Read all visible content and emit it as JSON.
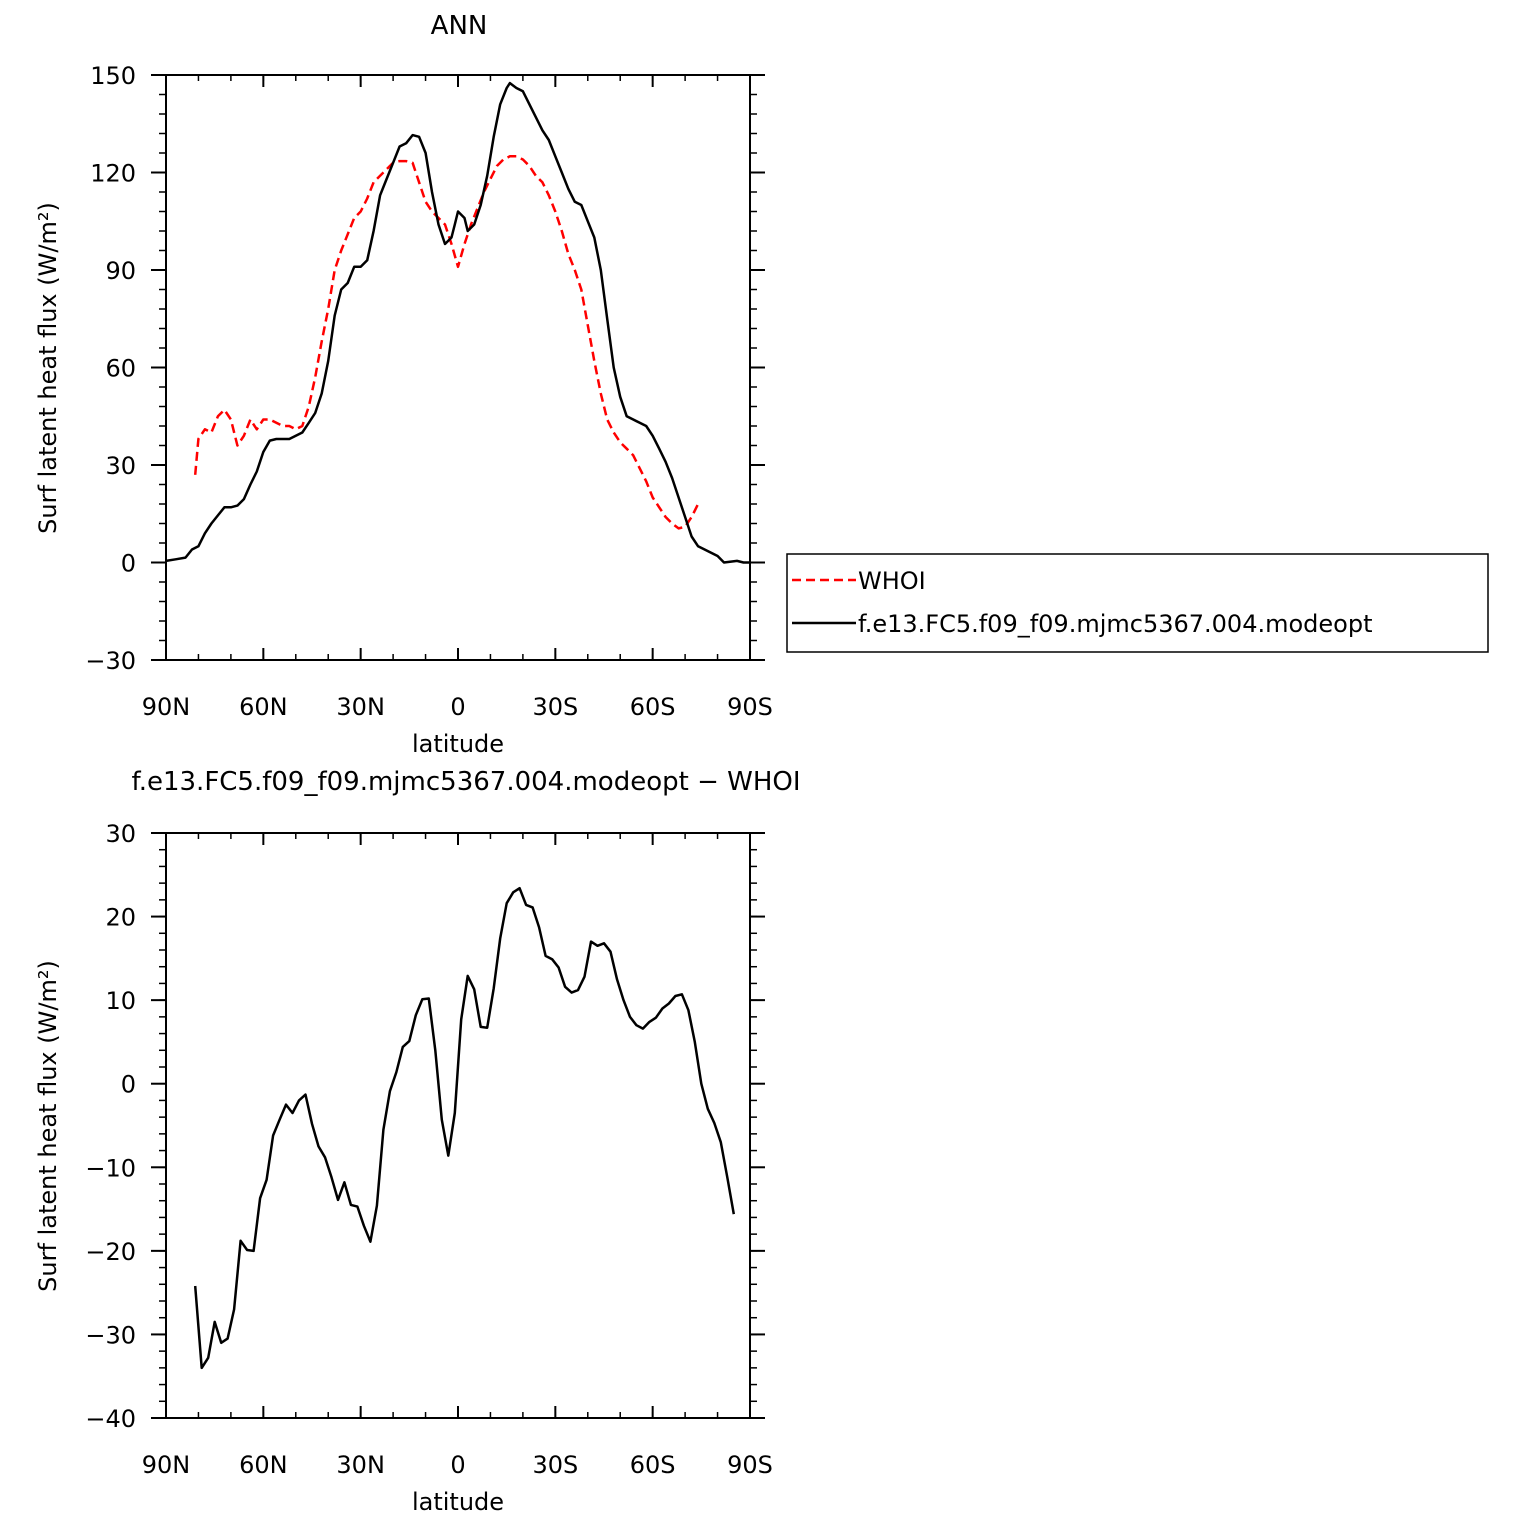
{
  "chart_data": [
    {
      "type": "line",
      "title": "ANN",
      "xlabel": "latitude",
      "ylabel": "Surf latent heat flux (W/m²)",
      "xlim": [
        90,
        -90
      ],
      "ylim": [
        -30,
        150
      ],
      "x_ticks": [
        {
          "value": 90,
          "label": "90N"
        },
        {
          "value": 60,
          "label": "60N"
        },
        {
          "value": 30,
          "label": "30N"
        },
        {
          "value": 0,
          "label": "0"
        },
        {
          "value": -30,
          "label": "30S"
        },
        {
          "value": -60,
          "label": "60S"
        },
        {
          "value": -90,
          "label": "90S"
        }
      ],
      "y_ticks": [
        {
          "value": 150,
          "label": "150"
        },
        {
          "value": 120,
          "label": "120"
        },
        {
          "value": 90,
          "label": "90"
        },
        {
          "value": 60,
          "label": "60"
        },
        {
          "value": 30,
          "label": "30"
        },
        {
          "value": 0,
          "label": "0"
        },
        {
          "value": -30,
          "label": "−30"
        }
      ],
      "legend": "right",
      "series": [
        {
          "name": "WHOI",
          "color": "#ff0000",
          "dash": true,
          "points": [
            [
              81,
              27
            ],
            [
              80,
              38
            ],
            [
              78,
              41
            ],
            [
              76,
              40
            ],
            [
              74,
              45
            ],
            [
              72,
              47
            ],
            [
              70,
              44
            ],
            [
              68,
              36
            ],
            [
              66,
              39
            ],
            [
              64,
              44
            ],
            [
              62,
              41
            ],
            [
              60,
              44
            ],
            [
              58,
              44
            ],
            [
              56,
              43
            ],
            [
              54,
              42
            ],
            [
              52,
              42
            ],
            [
              50,
              41
            ],
            [
              48,
              42
            ],
            [
              46,
              48
            ],
            [
              44,
              57
            ],
            [
              42,
              68
            ],
            [
              40,
              78
            ],
            [
              38,
              90
            ],
            [
              36,
              96
            ],
            [
              34,
              101
            ],
            [
              32,
              106
            ],
            [
              30,
              108
            ],
            [
              28,
              112
            ],
            [
              26,
              117
            ],
            [
              24,
              119
            ],
            [
              22,
              121
            ],
            [
              20,
              123
            ],
            [
              18,
              123.5
            ],
            [
              16,
              123.5
            ],
            [
              14,
              123
            ],
            [
              12,
              117
            ],
            [
              10,
              111
            ],
            [
              8,
              108
            ],
            [
              6,
              106
            ],
            [
              4,
              104
            ],
            [
              2,
              98
            ],
            [
              0,
              91
            ],
            [
              -2,
              98
            ],
            [
              -4,
              104
            ],
            [
              -6,
              109
            ],
            [
              -8,
              114
            ],
            [
              -10,
              118
            ],
            [
              -12,
              122
            ],
            [
              -14,
              124
            ],
            [
              -16,
              125
            ],
            [
              -18,
              125
            ],
            [
              -20,
              124
            ],
            [
              -22,
              122
            ],
            [
              -24,
              119
            ],
            [
              -26,
              117
            ],
            [
              -28,
              113
            ],
            [
              -30,
              108
            ],
            [
              -32,
              102
            ],
            [
              -34,
              95
            ],
            [
              -36,
              90
            ],
            [
              -38,
              84
            ],
            [
              -40,
              73
            ],
            [
              -42,
              62
            ],
            [
              -44,
              52
            ],
            [
              -46,
              44
            ],
            [
              -48,
              40
            ],
            [
              -50,
              37
            ],
            [
              -52,
              35
            ],
            [
              -54,
              33
            ],
            [
              -56,
              29
            ],
            [
              -58,
              25
            ],
            [
              -60,
              20
            ],
            [
              -62,
              17
            ],
            [
              -64,
              14
            ],
            [
              -66,
              12
            ],
            [
              -68,
              10.5
            ],
            [
              -70,
              11
            ],
            [
              -72,
              14
            ],
            [
              -74,
              18
            ]
          ]
        },
        {
          "name": "f.e13.FC5.f09_f09.mjmc5367.004.modeopt",
          "color": "#000000",
          "dash": false,
          "points": [
            [
              90,
              0.5
            ],
            [
              87,
              1
            ],
            [
              84,
              1.5
            ],
            [
              82,
              4
            ],
            [
              80,
              5
            ],
            [
              78,
              9
            ],
            [
              76,
              12
            ],
            [
              74,
              14.5
            ],
            [
              72,
              17
            ],
            [
              70,
              17
            ],
            [
              68,
              17.5
            ],
            [
              66,
              19.5
            ],
            [
              64,
              24
            ],
            [
              62,
              28
            ],
            [
              60,
              34
            ],
            [
              58,
              37.5
            ],
            [
              56,
              38
            ],
            [
              54,
              38
            ],
            [
              52,
              38
            ],
            [
              50,
              39
            ],
            [
              48,
              40
            ],
            [
              46,
              43
            ],
            [
              44,
              46
            ],
            [
              42,
              52
            ],
            [
              40,
              62
            ],
            [
              38,
              76
            ],
            [
              36,
              84
            ],
            [
              34,
              86
            ],
            [
              32,
              91
            ],
            [
              30,
              91
            ],
            [
              28,
              93
            ],
            [
              26,
              102
            ],
            [
              24,
              113
            ],
            [
              22,
              118
            ],
            [
              20,
              123
            ],
            [
              18,
              128
            ],
            [
              16,
              129
            ],
            [
              14,
              131.5
            ],
            [
              12,
              131
            ],
            [
              10,
              126
            ],
            [
              8,
              114
            ],
            [
              6,
              104
            ],
            [
              4,
              98
            ],
            [
              2,
              100
            ],
            [
              1,
              104
            ],
            [
              0,
              108
            ],
            [
              -2,
              106
            ],
            [
              -3,
              102
            ],
            [
              -5,
              104
            ],
            [
              -7,
              110
            ],
            [
              -9,
              119
            ],
            [
              -11,
              131
            ],
            [
              -13,
              141
            ],
            [
              -15,
              146
            ],
            [
              -16,
              147.5
            ],
            [
              -18,
              146
            ],
            [
              -20,
              145
            ],
            [
              -22,
              141
            ],
            [
              -24,
              137
            ],
            [
              -26,
              133
            ],
            [
              -28,
              130
            ],
            [
              -30,
              125
            ],
            [
              -32,
              120
            ],
            [
              -34,
              115
            ],
            [
              -36,
              111
            ],
            [
              -38,
              110
            ],
            [
              -40,
              105
            ],
            [
              -42,
              100
            ],
            [
              -44,
              90
            ],
            [
              -46,
              75
            ],
            [
              -48,
              60
            ],
            [
              -50,
              51
            ],
            [
              -52,
              45
            ],
            [
              -54,
              44
            ],
            [
              -56,
              43
            ],
            [
              -58,
              42
            ],
            [
              -60,
              39
            ],
            [
              -62,
              35
            ],
            [
              -64,
              31
            ],
            [
              -66,
              26
            ],
            [
              -68,
              20
            ],
            [
              -70,
              14
            ],
            [
              -72,
              8
            ],
            [
              -74,
              5
            ],
            [
              -76,
              4
            ],
            [
              -78,
              3
            ],
            [
              -80,
              2
            ],
            [
              -82,
              0
            ],
            [
              -86,
              0.5
            ],
            [
              -88,
              0
            ],
            [
              -90,
              0
            ]
          ]
        }
      ]
    },
    {
      "type": "line",
      "title": "f.e13.FC5.f09_f09.mjmc5367.004.modeopt − WHOI",
      "xlabel": "latitude",
      "ylabel": "Surf latent heat flux (W/m²)",
      "xlim": [
        90,
        -90
      ],
      "ylim": [
        -40,
        30
      ],
      "x_ticks": [
        {
          "value": 90,
          "label": "90N"
        },
        {
          "value": 60,
          "label": "60N"
        },
        {
          "value": 30,
          "label": "30N"
        },
        {
          "value": 0,
          "label": "0"
        },
        {
          "value": -30,
          "label": "30S"
        },
        {
          "value": -60,
          "label": "60S"
        },
        {
          "value": -90,
          "label": "90S"
        }
      ],
      "y_ticks": [
        {
          "value": 30,
          "label": "30"
        },
        {
          "value": 20,
          "label": "20"
        },
        {
          "value": 10,
          "label": "10"
        },
        {
          "value": 0,
          "label": "0"
        },
        {
          "value": -10,
          "label": "−10"
        },
        {
          "value": -20,
          "label": "−20"
        },
        {
          "value": -30,
          "label": "−30"
        },
        {
          "value": -40,
          "label": "−40"
        }
      ],
      "series": [
        {
          "color": "#000000",
          "dash": false,
          "points": [
            [
              81,
              -24.2
            ],
            [
              79,
              -34
            ],
            [
              77,
              -32.8
            ],
            [
              75,
              -28.5
            ],
            [
              73,
              -31
            ],
            [
              71,
              -30.5
            ],
            [
              69,
              -27
            ],
            [
              67,
              -18.8
            ],
            [
              65,
              -19.9
            ],
            [
              63,
              -20
            ],
            [
              61,
              -13.7
            ],
            [
              59,
              -11.5
            ],
            [
              57,
              -6.2
            ],
            [
              55,
              -4.3
            ],
            [
              53,
              -2.5
            ],
            [
              51,
              -3.5
            ],
            [
              49,
              -2
            ],
            [
              47,
              -1.3
            ],
            [
              45,
              -4.8
            ],
            [
              43,
              -7.5
            ],
            [
              41,
              -8.8
            ],
            [
              39,
              -11.2
            ],
            [
              37,
              -13.9
            ],
            [
              35,
              -11.8
            ],
            [
              33,
              -14.5
            ],
            [
              31,
              -14.7
            ],
            [
              29,
              -17
            ],
            [
              27,
              -18.9
            ],
            [
              25,
              -14.6
            ],
            [
              23,
              -5.5
            ],
            [
              21,
              -0.9
            ],
            [
              19,
              1.4
            ],
            [
              17,
              4.4
            ],
            [
              15,
              5.1
            ],
            [
              13,
              8.2
            ],
            [
              11,
              10.1
            ],
            [
              9,
              10.2
            ],
            [
              7,
              4
            ],
            [
              5,
              -4.3
            ],
            [
              3,
              -8.6
            ],
            [
              1,
              -3.5
            ],
            [
              -1,
              7.7
            ],
            [
              -3,
              12.9
            ],
            [
              -5,
              11.3
            ],
            [
              -7,
              6.8
            ],
            [
              -9,
              6.7
            ],
            [
              -11,
              11.4
            ],
            [
              -13,
              17.4
            ],
            [
              -15,
              21.6
            ],
            [
              -17,
              22.9
            ],
            [
              -19,
              23.4
            ],
            [
              -21,
              21.4
            ],
            [
              -23,
              21.1
            ],
            [
              -25,
              18.7
            ],
            [
              -27,
              15.3
            ],
            [
              -29,
              14.9
            ],
            [
              -31,
              13.9
            ],
            [
              -33,
              11.6
            ],
            [
              -35,
              10.9
            ],
            [
              -37,
              11.2
            ],
            [
              -39,
              12.8
            ],
            [
              -41,
              17
            ],
            [
              -43,
              16.5
            ],
            [
              -45,
              16.8
            ],
            [
              -47,
              15.8
            ],
            [
              -49,
              12.5
            ],
            [
              -51,
              10
            ],
            [
              -53,
              8
            ],
            [
              -55,
              7
            ],
            [
              -57,
              6.6
            ],
            [
              -59,
              7.4
            ],
            [
              -61,
              7.9
            ],
            [
              -63,
              9
            ],
            [
              -65,
              9.6
            ],
            [
              -67,
              10.5
            ],
            [
              -69,
              10.7
            ],
            [
              -71,
              8.8
            ],
            [
              -73,
              5
            ],
            [
              -75,
              0
            ],
            [
              -77,
              -3
            ],
            [
              -79,
              -4.7
            ],
            [
              -81,
              -7
            ],
            [
              -83,
              -11.2
            ],
            [
              -85,
              -15.6
            ]
          ]
        }
      ]
    }
  ]
}
